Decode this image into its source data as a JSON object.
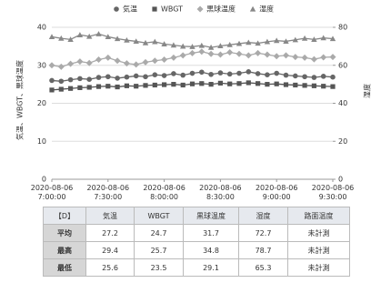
{
  "chart_data": {
    "type": "line",
    "y_label": "気温、WBGT、黒球温度",
    "y2_label": "湿度",
    "x": [
      "2020-08-06 7:00:00",
      "2020-08-06 7:05:00",
      "2020-08-06 7:10:00",
      "2020-08-06 7:15:00",
      "2020-08-06 7:20:00",
      "2020-08-06 7:25:00",
      "2020-08-06 7:30:00",
      "2020-08-06 7:35:00",
      "2020-08-06 7:40:00",
      "2020-08-06 7:45:00",
      "2020-08-06 7:50:00",
      "2020-08-06 7:55:00",
      "2020-08-06 8:00:00",
      "2020-08-06 8:05:00",
      "2020-08-06 8:10:00",
      "2020-08-06 8:15:00",
      "2020-08-06 8:20:00",
      "2020-08-06 8:25:00",
      "2020-08-06 8:30:00",
      "2020-08-06 8:35:00",
      "2020-08-06 8:40:00",
      "2020-08-06 8:45:00",
      "2020-08-06 8:50:00",
      "2020-08-06 8:55:00",
      "2020-08-06 9:00:00",
      "2020-08-06 9:05:00",
      "2020-08-06 9:10:00",
      "2020-08-06 9:15:00",
      "2020-08-06 9:20:00",
      "2020-08-06 9:25:00",
      "2020-08-06 9:30:00"
    ],
    "xlim": [
      "2020-08-06 7:00:00",
      "2020-08-06 9:30:00"
    ],
    "xticks": [
      "2020-08-06 7:00:00",
      "2020-08-06 7:30:00",
      "2020-08-06 8:00:00",
      "2020-08-06 8:30:00",
      "2020-08-06 9:00:00",
      "2020-08-06 9:30:00"
    ],
    "ylim": [
      0,
      40
    ],
    "yticks": [
      0,
      10,
      20,
      30,
      40
    ],
    "y2lim": [
      0,
      80
    ],
    "y2ticks": [
      0,
      20,
      40,
      60,
      80
    ],
    "grid": true,
    "series": [
      {
        "name": "気温",
        "color": "#666666",
        "marker": "circle",
        "values": [
          26.0,
          25.8,
          26.2,
          26.5,
          26.3,
          26.8,
          27.0,
          26.6,
          26.9,
          27.2,
          27.0,
          27.5,
          27.3,
          27.8,
          27.4,
          27.9,
          28.2,
          27.6,
          28.0,
          27.7,
          27.9,
          28.3,
          27.8,
          27.5,
          27.9,
          27.4,
          27.2,
          27.0,
          26.8,
          27.1,
          26.9
        ]
      },
      {
        "name": "WBGT",
        "color": "#555555",
        "marker": "square",
        "values": [
          23.5,
          23.7,
          23.9,
          24.1,
          24.2,
          24.4,
          24.5,
          24.3,
          24.6,
          24.5,
          24.7,
          24.8,
          24.9,
          25.0,
          24.8,
          25.1,
          25.2,
          25.0,
          25.3,
          25.1,
          25.2,
          25.4,
          25.2,
          25.0,
          25.1,
          24.9,
          24.8,
          24.7,
          24.6,
          24.5,
          24.4
        ]
      },
      {
        "name": "黒球温度",
        "color": "#aaaaaa",
        "marker": "diamond",
        "values": [
          30.0,
          29.6,
          30.4,
          31.0,
          30.6,
          31.5,
          32.0,
          31.2,
          30.5,
          30.2,
          30.8,
          31.2,
          31.5,
          32.0,
          32.6,
          33.2,
          33.6,
          33.0,
          32.8,
          33.4,
          33.0,
          32.6,
          33.2,
          32.8,
          32.4,
          32.6,
          32.2,
          32.0,
          31.6,
          32.1,
          32.2
        ]
      },
      {
        "name": "湿度",
        "color": "#888888",
        "marker": "triangle",
        "axis": "y2",
        "values": [
          75.0,
          74.2,
          73.6,
          76.0,
          75.2,
          76.5,
          75.0,
          74.0,
          73.2,
          72.6,
          71.8,
          72.4,
          71.2,
          70.6,
          70.0,
          69.8,
          70.4,
          69.4,
          70.2,
          70.8,
          71.4,
          72.0,
          71.6,
          72.4,
          73.0,
          72.6,
          73.4,
          74.2,
          73.6,
          74.4,
          74.0
        ]
      }
    ]
  },
  "table": {
    "header": [
      "【D】",
      "気温",
      "WBGT",
      "黒球温度",
      "湿度",
      "路面温度"
    ],
    "rows": [
      [
        "平均",
        27.2,
        24.7,
        31.7,
        72.7,
        "未計測"
      ],
      [
        "最高",
        29.4,
        25.7,
        34.8,
        78.7,
        "未計測"
      ],
      [
        "最低",
        25.6,
        23.5,
        29.1,
        65.3,
        "未計測"
      ]
    ]
  }
}
